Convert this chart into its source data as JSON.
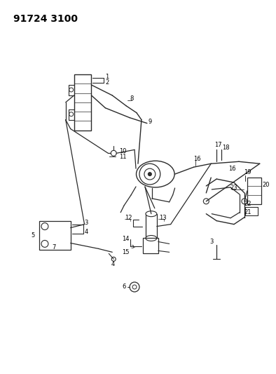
{
  "title": "91724 3100",
  "title_fontsize": 10,
  "title_fontweight": "bold",
  "bg_color": "#ffffff",
  "line_color": "#2a2a2a",
  "text_color": "#000000",
  "fig_width": 3.94,
  "fig_height": 5.33,
  "dpi": 100
}
